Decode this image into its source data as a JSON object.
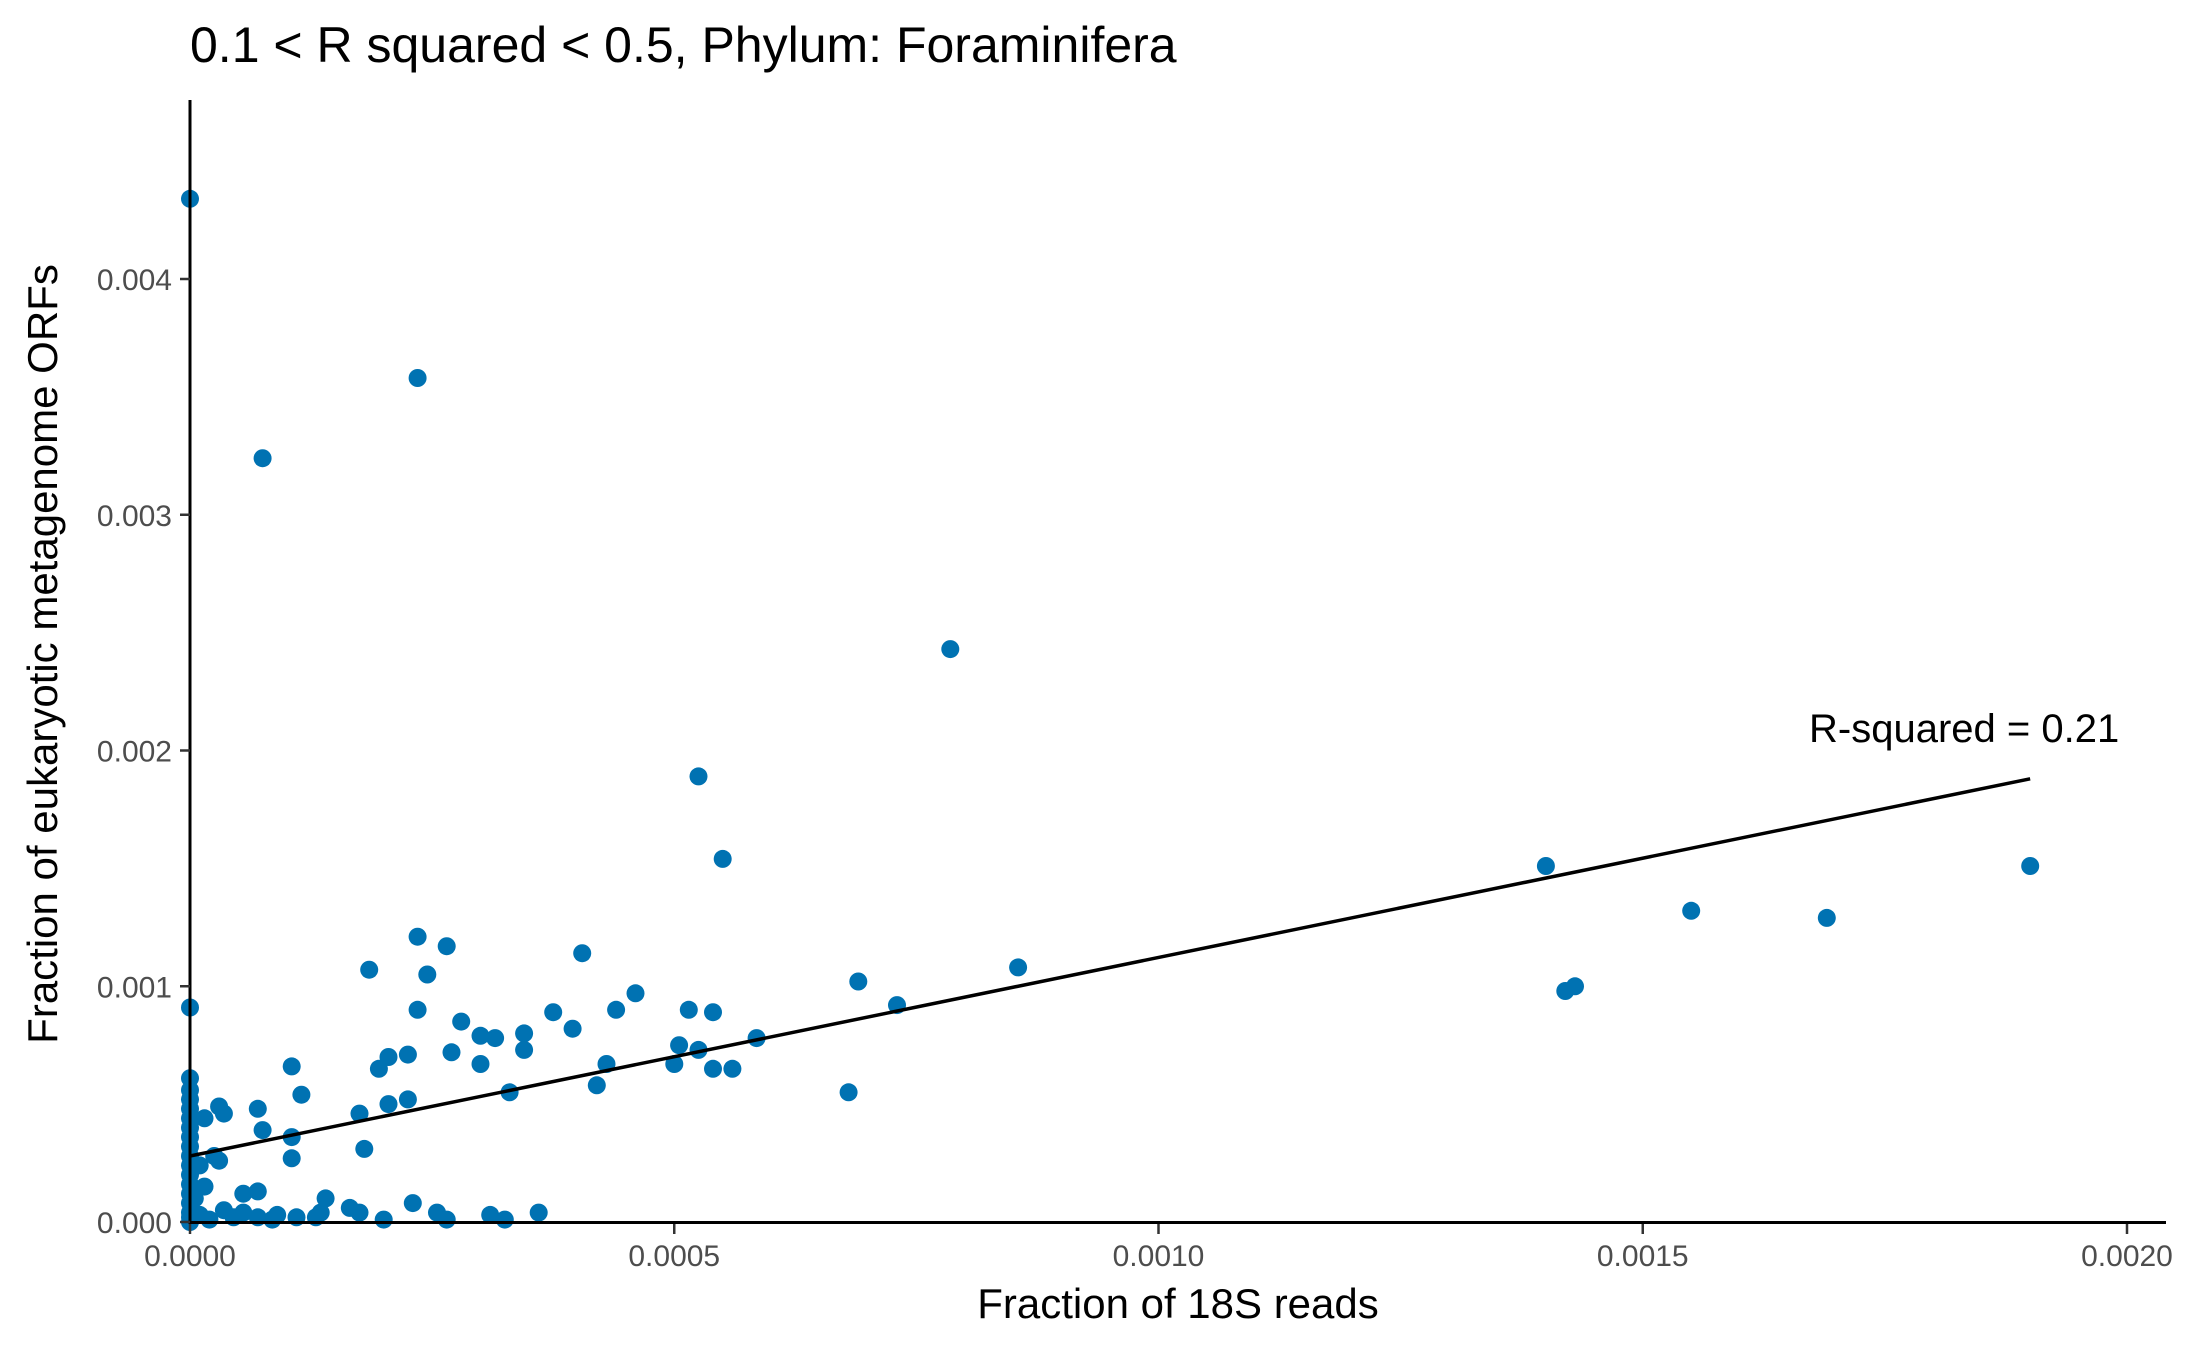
{
  "chart_data": {
    "type": "scatter",
    "title": "0.1 < R squared < 0.5, Phylum:  Foraminifera",
    "xlabel": "Fraction of 18S reads",
    "ylabel": "Fraction of eukaryotic metagenome ORFs",
    "xlim": [
      0,
      0.00208
    ],
    "ylim": [
      0,
      0.00475
    ],
    "x_ticks": [
      "0.0000",
      "0.0005",
      "0.0010",
      "0.0015",
      "0.0020"
    ],
    "y_ticks": [
      "0.000",
      "0.001",
      "0.002",
      "0.003",
      "0.004"
    ],
    "grid": false,
    "point_color": "#0072B2",
    "line_color": "#000000",
    "annotation": "R-squared =  0.21",
    "regression_line": [
      [
        0,
        0.00028
      ],
      [
        0.0019,
        0.00188
      ]
    ],
    "points": [
      [
        0,
        0.00434
      ],
      [
        0.000235,
        0.00358
      ],
      [
        7.5e-05,
        0.00324
      ],
      [
        0.000785,
        0.00243
      ],
      [
        0.000525,
        0.00189
      ],
      [
        0.00055,
        0.00154
      ],
      [
        0.0014,
        0.00151
      ],
      [
        0.0019,
        0.00151
      ],
      [
        0.00155,
        0.00132
      ],
      [
        0.00169,
        0.00129
      ],
      [
        0.00143,
        0.001
      ],
      [
        0.00142,
        0.00098
      ],
      [
        0.000235,
        0.00121
      ],
      [
        0.000265,
        0.00117
      ],
      [
        0.000405,
        0.00114
      ],
      [
        0.000185,
        0.00107
      ],
      [
        0.000245,
        0.00105
      ],
      [
        0.000855,
        0.00108
      ],
      [
        0.00069,
        0.00102
      ],
      [
        0.00073,
        0.00092
      ],
      [
        0.00046,
        0.00097
      ],
      [
        0.00044,
        0.0009
      ],
      [
        0.000515,
        0.0009
      ],
      [
        0.00054,
        0.00089
      ],
      [
        0.000375,
        0.00089
      ],
      [
        0.000235,
        0.0009
      ],
      [
        0.00028,
        0.00085
      ],
      [
        0.000395,
        0.00082
      ],
      [
        0.0003,
        0.00079
      ],
      [
        0.000315,
        0.00078
      ],
      [
        0.000345,
        0.0008
      ],
      [
        0.000585,
        0.00078
      ],
      [
        0.000505,
        0.00075
      ],
      [
        0.000525,
        0.00073
      ],
      [
        0.000345,
        0.00073
      ],
      [
        0.00027,
        0.00072
      ],
      [
        0.000225,
        0.00071
      ],
      [
        0.000205,
        0.0007
      ],
      [
        0.0003,
        0.00067
      ],
      [
        0.00043,
        0.00067
      ],
      [
        0.0005,
        0.00067
      ],
      [
        0.00054,
        0.00065
      ],
      [
        0.00056,
        0.00065
      ],
      [
        0.000195,
        0.00065
      ],
      [
        0.000105,
        0.00066
      ],
      [
        0.00042,
        0.00058
      ],
      [
        0.00068,
        0.00055
      ],
      [
        0.00033,
        0.00055
      ],
      [
        0.000225,
        0.00052
      ],
      [
        0.000205,
        0.0005
      ],
      [
        0.000175,
        0.00046
      ],
      [
        0.000115,
        0.00054
      ],
      [
        7e-05,
        0.00048
      ],
      [
        3e-05,
        0.00049
      ],
      [
        3.5e-05,
        0.00046
      ],
      [
        1.5e-05,
        0.00044
      ],
      [
        7.5e-05,
        0.00039
      ],
      [
        0.000105,
        0.00036
      ],
      [
        0.00018,
        0.00031
      ],
      [
        0.000105,
        0.00027
      ],
      [
        2.5e-05,
        0.00028
      ],
      [
        3e-05,
        0.00026
      ],
      [
        1e-05,
        0.00024
      ],
      [
        1.5e-05,
        0.00015
      ],
      [
        5e-06,
        0.0001
      ],
      [
        7e-05,
        0.00013
      ],
      [
        5.5e-05,
        0.00012
      ],
      [
        0.00014,
        0.0001
      ],
      [
        0.000135,
        4e-05
      ],
      [
        0.000165,
        6e-05
      ],
      [
        0.000175,
        4e-05
      ],
      [
        0.00023,
        8e-05
      ],
      [
        0.000255,
        4e-05
      ],
      [
        0.00031,
        3e-05
      ],
      [
        0.00036,
        4e-05
      ],
      [
        0.000265,
        1e-05
      ],
      [
        0.000325,
        1e-05
      ],
      [
        0.0002,
        1e-05
      ],
      [
        0.00013,
        2e-05
      ],
      [
        0.00011,
        2e-05
      ],
      [
        9e-05,
        3e-05
      ],
      [
        8.5e-05,
        1e-05
      ],
      [
        7e-05,
        2e-05
      ],
      [
        5.5e-05,
        4e-05
      ],
      [
        4.5e-05,
        2e-05
      ],
      [
        3.5e-05,
        5e-05
      ],
      [
        2e-05,
        1e-05
      ],
      [
        1e-05,
        3e-05
      ],
      [
        0,
        0.00091
      ],
      [
        0,
        0.00061
      ],
      [
        0,
        0.00056
      ],
      [
        0,
        0.00052
      ],
      [
        0,
        0.00048
      ],
      [
        0,
        0.00044
      ],
      [
        0,
        0.0004
      ],
      [
        0,
        0.00036
      ],
      [
        0,
        0.00032
      ],
      [
        0,
        0.00028
      ],
      [
        0,
        0.00024
      ],
      [
        0,
        0.0002
      ],
      [
        0,
        0.00016
      ],
      [
        0,
        0.00012
      ],
      [
        0,
        8e-05
      ],
      [
        0,
        4e-05
      ],
      [
        0,
        2e-05
      ],
      [
        0,
        0
      ]
    ]
  }
}
